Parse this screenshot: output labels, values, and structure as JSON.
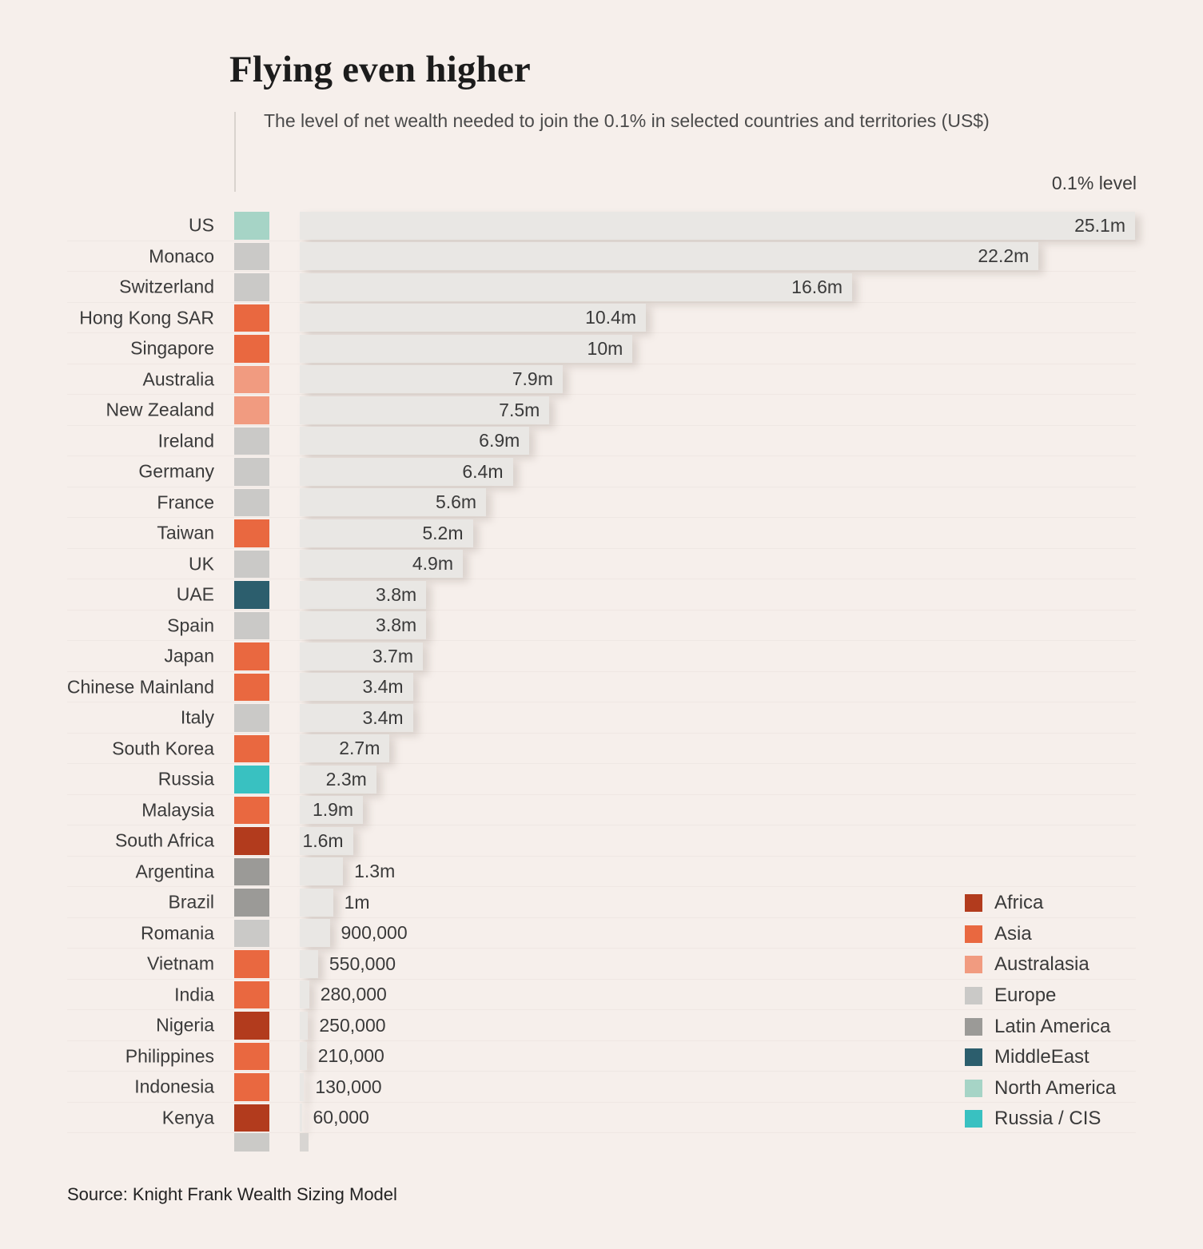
{
  "header": {
    "title": "Flying even higher",
    "subtitle": "The level of net wealth needed to join the 0.1% in selected countries and territories (US$)",
    "axis_label": "0.1% level"
  },
  "chart_data": {
    "type": "bar",
    "orientation": "horizontal",
    "unit": "US$ millions",
    "max_value": 25.1,
    "title": "Flying even higher",
    "subtitle": "The level of net wealth needed to join the 0.1% in selected countries and territories (US$)",
    "legend_position": "bottom-right",
    "rows": [
      {
        "country": "US",
        "region": "North America",
        "value": 25.1,
        "label": "25.1m"
      },
      {
        "country": "Monaco",
        "region": "Europe",
        "value": 22.2,
        "label": "22.2m"
      },
      {
        "country": "Switzerland",
        "region": "Europe",
        "value": 16.6,
        "label": "16.6m"
      },
      {
        "country": "Hong Kong SAR",
        "region": "Asia",
        "value": 10.4,
        "label": "10.4m"
      },
      {
        "country": "Singapore",
        "region": "Asia",
        "value": 10,
        "label": "10m"
      },
      {
        "country": "Australia",
        "region": "Australasia",
        "value": 7.9,
        "label": "7.9m"
      },
      {
        "country": "New Zealand",
        "region": "Australasia",
        "value": 7.5,
        "label": "7.5m"
      },
      {
        "country": "Ireland",
        "region": "Europe",
        "value": 6.9,
        "label": "6.9m"
      },
      {
        "country": "Germany",
        "region": "Europe",
        "value": 6.4,
        "label": "6.4m"
      },
      {
        "country": "France",
        "region": "Europe",
        "value": 5.6,
        "label": "5.6m"
      },
      {
        "country": "Taiwan",
        "region": "Asia",
        "value": 5.2,
        "label": "5.2m"
      },
      {
        "country": "UK",
        "region": "Europe",
        "value": 4.9,
        "label": "4.9m"
      },
      {
        "country": "UAE",
        "region": "MiddleEast",
        "value": 3.8,
        "label": "3.8m"
      },
      {
        "country": "Spain",
        "region": "Europe",
        "value": 3.8,
        "label": "3.8m"
      },
      {
        "country": "Japan",
        "region": "Asia",
        "value": 3.7,
        "label": "3.7m"
      },
      {
        "country": "Chinese Mainland",
        "region": "Asia",
        "value": 3.4,
        "label": "3.4m"
      },
      {
        "country": "Italy",
        "region": "Europe",
        "value": 3.4,
        "label": "3.4m"
      },
      {
        "country": "South Korea",
        "region": "Asia",
        "value": 2.7,
        "label": "2.7m"
      },
      {
        "country": "Russia",
        "region": "Russia / CIS",
        "value": 2.3,
        "label": "2.3m"
      },
      {
        "country": "Malaysia",
        "region": "Asia",
        "value": 1.9,
        "label": "1.9m"
      },
      {
        "country": "South Africa",
        "region": "Africa",
        "value": 1.6,
        "label": "1.6m"
      },
      {
        "country": "Argentina",
        "region": "Latin America",
        "value": 1.3,
        "label": "1.3m"
      },
      {
        "country": "Brazil",
        "region": "Latin America",
        "value": 1.0,
        "label": "1m"
      },
      {
        "country": "Romania",
        "region": "Europe",
        "value": 0.9,
        "label": "900,000"
      },
      {
        "country": "Vietnam",
        "region": "Asia",
        "value": 0.55,
        "label": "550,000"
      },
      {
        "country": "India",
        "region": "Asia",
        "value": 0.28,
        "label": "280,000"
      },
      {
        "country": "Nigeria",
        "region": "Africa",
        "value": 0.25,
        "label": "250,000"
      },
      {
        "country": "Philippines",
        "region": "Asia",
        "value": 0.21,
        "label": "210,000"
      },
      {
        "country": "Indonesia",
        "region": "Asia",
        "value": 0.13,
        "label": "130,000"
      },
      {
        "country": "Kenya",
        "region": "Africa",
        "value": 0.06,
        "label": "60,000"
      }
    ]
  },
  "regions": {
    "Africa": "#b23b1d",
    "Asia": "#e96840",
    "Australasia": "#f19b80",
    "Europe": "#cac9c7",
    "Latin America": "#9b9a97",
    "MiddleEast": "#2c5e6d",
    "North America": "#a6d4c6",
    "Russia / CIS": "#39c1c1"
  },
  "footer": {
    "source": "Source: Knight Frank Wealth Sizing Model"
  }
}
